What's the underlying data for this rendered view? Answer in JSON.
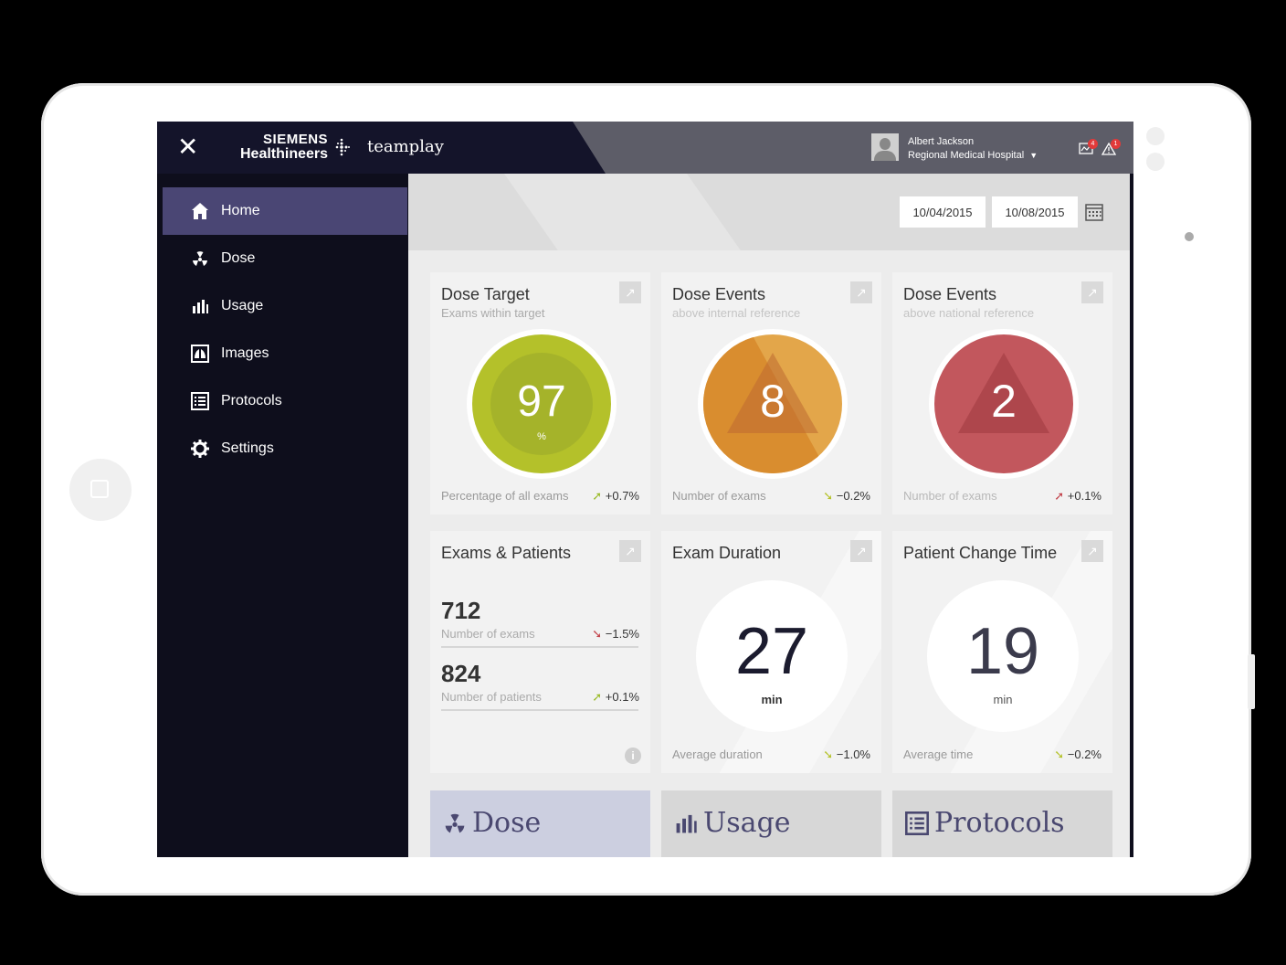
{
  "header": {
    "brand_line1": "SIEMENS",
    "brand_line2": "Healthineers",
    "app_name": "teamplay",
    "close_label": "✕",
    "user_name": "Albert Jackson",
    "user_hospital": "Regional Medical Hospital",
    "messages_badge": "4",
    "alerts_badge": "1"
  },
  "sidebar": {
    "items": [
      {
        "label": "Home",
        "icon": "home-icon",
        "active": true
      },
      {
        "label": "Dose",
        "icon": "radiation-icon"
      },
      {
        "label": "Usage",
        "icon": "bar-chart-icon"
      },
      {
        "label": "Images",
        "icon": "lungs-icon"
      },
      {
        "label": "Protocols",
        "icon": "list-icon"
      },
      {
        "label": "Settings",
        "icon": "gear-icon"
      }
    ]
  },
  "dates": {
    "from": "10/04/2015",
    "to": "10/08/2015"
  },
  "cards": {
    "dose_target": {
      "title": "Dose Target",
      "subtitle": "Exams within target",
      "value": "97",
      "unit": "%",
      "footer": "Percentage of all exams",
      "delta": "+0.7%",
      "color": "#b4c12a"
    },
    "dose_events_internal": {
      "title": "Dose Events",
      "subtitle": "above internal reference",
      "value": "8",
      "footer": "Number of exams",
      "delta": "−0.2%",
      "color": "#e3a64a"
    },
    "dose_events_national": {
      "title": "Dose Events",
      "subtitle": "above national reference",
      "value": "2",
      "footer": "Number of exams",
      "delta": "+0.1%",
      "color": "#c2575d"
    },
    "exams_patients": {
      "title": "Exams & Patients",
      "exams_value": "712",
      "exams_label": "Number of exams",
      "exams_delta": "−1.5%",
      "patients_value": "824",
      "patients_label": "Number of patients",
      "patients_delta": "+0.1%"
    },
    "exam_duration": {
      "title": "Exam Duration",
      "value": "27",
      "unit": "min",
      "footer": "Average duration",
      "delta": "−1.0%"
    },
    "patient_change": {
      "title": "Patient Change Time",
      "value": "19",
      "unit": "min",
      "footer": "Average time",
      "delta": "−0.2%"
    }
  },
  "tiles": [
    {
      "label": "Dose",
      "icon": "radiation-icon"
    },
    {
      "label": "Usage",
      "icon": "bar-chart-icon"
    },
    {
      "label": "Protocols",
      "icon": "list-icon"
    }
  ]
}
